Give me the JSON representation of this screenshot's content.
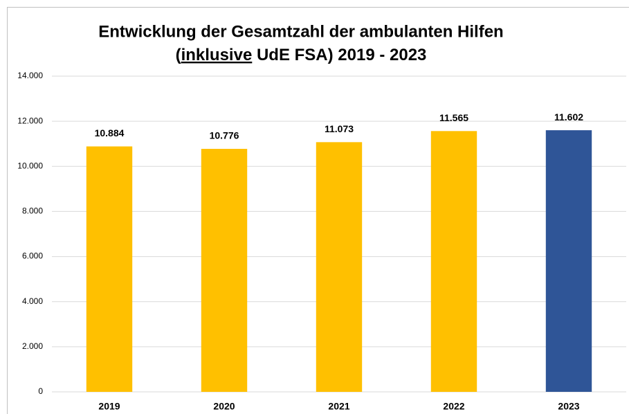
{
  "chart_data": {
    "type": "bar",
    "title": [
      "Entwicklung der Gesamtzahl der ambulanten Hilfen",
      [
        "(",
        "inklusive",
        " UdE FSA) 2019 - 2023"
      ]
    ],
    "categories": [
      "2019",
      "2020",
      "2021",
      "2022",
      "2023"
    ],
    "values": [
      10884,
      10776,
      11073,
      11565,
      11602
    ],
    "value_labels": [
      "10.884",
      "10.776",
      "11.073",
      "11.565",
      "11.602"
    ],
    "colors": [
      "#ffc000",
      "#ffc000",
      "#ffc000",
      "#ffc000",
      "#2f5597"
    ],
    "ylim": [
      0,
      14000
    ],
    "yticks": [
      0,
      {
        "value": 2000,
        "label": "2.000"
      },
      {
        "value": 4000,
        "label": "4.000"
      },
      {
        "value": 6000,
        "label": "6.000"
      },
      {
        "value": 8000,
        "label": "8.000"
      },
      {
        "value": 10000,
        "label": "10.000"
      },
      {
        "value": 12000,
        "label": "12.000"
      },
      {
        "value": 14000,
        "label": "14.000"
      }
    ],
    "grid": true
  }
}
